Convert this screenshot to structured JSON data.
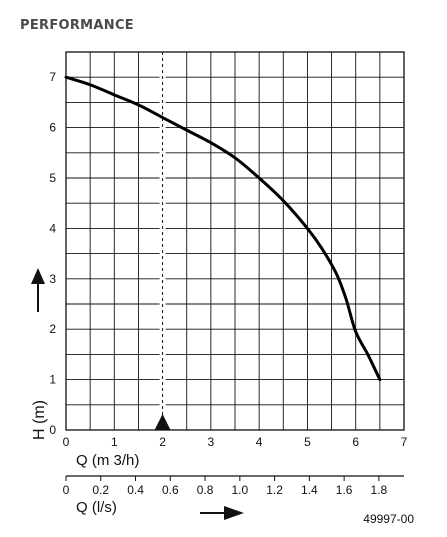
{
  "header": {
    "title": "PERFORMANCE"
  },
  "chart_data": {
    "type": "line",
    "title": "",
    "xlabel": "Q (m 3/h)",
    "ylabel": "H (m)",
    "x_secondary_label": "Q (l/s)",
    "xlim": [
      0,
      7
    ],
    "ylim": [
      0,
      7.5
    ],
    "grid": true,
    "x_ticks": [
      "0",
      "1",
      "2",
      "3",
      "4",
      "5",
      "6",
      "7"
    ],
    "y_ticks": [
      "0",
      "1",
      "2",
      "3",
      "4",
      "5",
      "6",
      "7"
    ],
    "x_secondary_ticks": [
      "0",
      "0.2",
      "0.4",
      "0.6",
      "0.8",
      "1.0",
      "1.2",
      "1.4",
      "1.6",
      "1.8"
    ],
    "series": [
      {
        "x": [
          0,
          0.5,
          1,
          1.5,
          2,
          2.5,
          3,
          3.5,
          4,
          4.5,
          5,
          5.3,
          5.6,
          5.8,
          6.0,
          6.25,
          6.5
        ],
        "y": [
          7.0,
          6.85,
          6.65,
          6.45,
          6.2,
          5.95,
          5.7,
          5.4,
          5.0,
          4.55,
          4.0,
          3.6,
          3.1,
          2.6,
          1.95,
          1.5,
          1.0
        ]
      }
    ],
    "marker": {
      "x": 2,
      "style": "dashed-vertical-line-with-triangle"
    },
    "annotations": [
      "49997-00"
    ]
  }
}
